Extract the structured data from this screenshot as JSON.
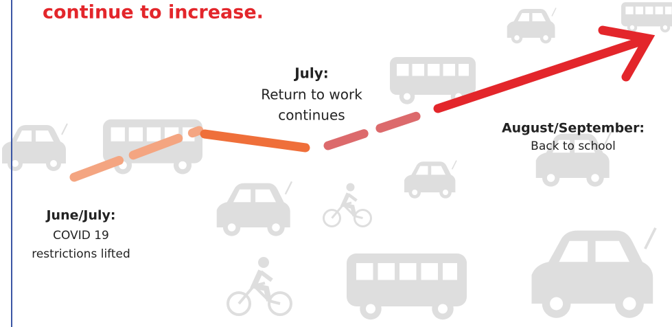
{
  "header": {
    "title": "continue to increase."
  },
  "milestones": [
    {
      "label": "June/July:",
      "lines": [
        "COVID 19",
        "restrictions lifted"
      ]
    },
    {
      "label": "July:",
      "lines": [
        "Return to work",
        "continues"
      ]
    },
    {
      "label": "August/September:",
      "lines": [
        "Back to school"
      ]
    }
  ]
}
